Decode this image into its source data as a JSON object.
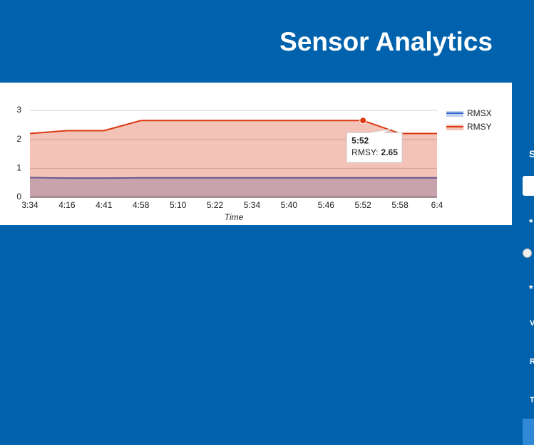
{
  "header": {
    "title": "Sensor Analytics"
  },
  "chart_data": {
    "type": "area",
    "x_label": "Time",
    "categories": [
      "3:34",
      "4:16",
      "4:41",
      "4:58",
      "5:10",
      "5:22",
      "5:34",
      "5:40",
      "5:46",
      "5:52",
      "5:58",
      "6:4"
    ],
    "series": [
      {
        "name": "RMSX",
        "color": "#3366cc",
        "values": [
          0.68,
          0.66,
          0.66,
          0.67,
          0.67,
          0.67,
          0.67,
          0.67,
          0.67,
          0.67,
          0.67,
          0.67
        ]
      },
      {
        "name": "RMSY",
        "color": "#dc3912",
        "values": [
          2.2,
          2.3,
          2.3,
          2.65,
          2.65,
          2.65,
          2.65,
          2.65,
          2.65,
          2.65,
          2.2,
          2.2
        ]
      }
    ],
    "ylim": [
      0,
      3
    ],
    "yticks": [
      0,
      1,
      2,
      3
    ],
    "grid": true,
    "legend": "right",
    "tooltip": {
      "series": 1,
      "index": 9,
      "label": "RMSY:"
    }
  },
  "sidebar": {
    "labels": [
      "S",
      "*",
      "*",
      "V",
      "R",
      "T"
    ]
  }
}
